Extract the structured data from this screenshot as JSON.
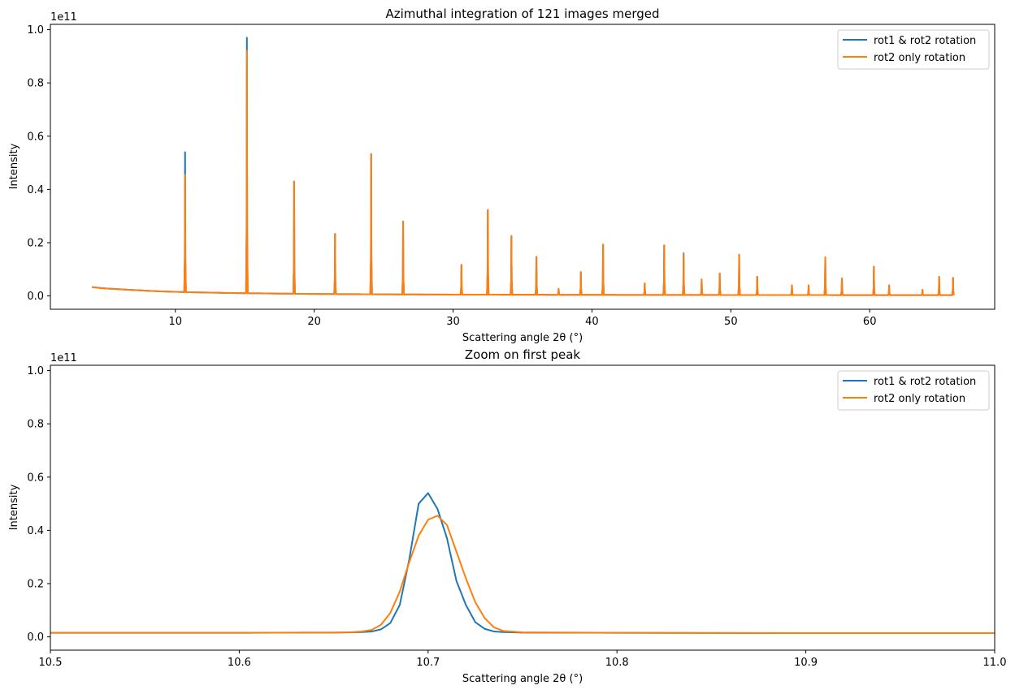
{
  "colors": {
    "series_1": "#1f77b4",
    "series_2": "#ff7f0e",
    "axes": "#000000",
    "background": "#ffffff"
  },
  "chart_data": [
    {
      "type": "line",
      "title": "Azimuthal integration of 121 images merged",
      "xlabel": "Scattering angle 2θ (°)",
      "ylabel": "Intensity",
      "y_offset_label": "1e11",
      "y_scale": 100000000000.0,
      "xlim": [
        1,
        69
      ],
      "ylim": [
        -0.05,
        1.02
      ],
      "xticks": [
        10,
        20,
        30,
        40,
        50,
        60
      ],
      "xtick_labels": [
        "10",
        "20",
        "30",
        "40",
        "50",
        "60"
      ],
      "yticks": [
        0.0,
        0.2,
        0.4,
        0.6,
        0.8,
        1.0
      ],
      "ytick_labels": [
        "0.0",
        "0.2",
        "0.4",
        "0.6",
        "0.8",
        "1.0"
      ],
      "grid": false,
      "legend_position": "top-right",
      "baseline": [
        [
          4.0,
          0.033
        ],
        [
          5.0,
          0.028
        ],
        [
          7.0,
          0.022
        ],
        [
          9.0,
          0.017
        ],
        [
          11.0,
          0.014
        ],
        [
          14.0,
          0.011
        ],
        [
          17.0,
          0.009
        ],
        [
          20.0,
          0.0075
        ],
        [
          25.0,
          0.006
        ],
        [
          30.0,
          0.005
        ],
        [
          40.0,
          0.004
        ],
        [
          50.0,
          0.0035
        ],
        [
          60.0,
          0.003
        ],
        [
          66.2,
          0.003
        ]
      ],
      "peaks_x": [
        10.7,
        15.15,
        18.55,
        21.5,
        24.1,
        26.4,
        30.6,
        32.5,
        34.2,
        36.0,
        37.6,
        39.2,
        40.8,
        43.8,
        45.2,
        46.6,
        47.9,
        49.2,
        50.6,
        51.9,
        54.4,
        55.6,
        56.8,
        58.0,
        60.3,
        61.4,
        63.8,
        65.0,
        66.0
      ],
      "series": [
        {
          "name": "rot1 & rot2 rotation",
          "peak_values": [
            0.54,
            0.97,
            0.43,
            0.233,
            0.533,
            0.28,
            0.117,
            0.323,
            0.225,
            0.147,
            0.027,
            0.09,
            0.193,
            0.047,
            0.19,
            0.16,
            0.062,
            0.085,
            0.155,
            0.072,
            0.04,
            0.04,
            0.145,
            0.066,
            0.11,
            0.04,
            0.023,
            0.072,
            0.068
          ]
        },
        {
          "name": "rot2 only rotation",
          "peak_values": [
            0.455,
            0.92,
            0.43,
            0.233,
            0.533,
            0.28,
            0.117,
            0.323,
            0.225,
            0.147,
            0.027,
            0.09,
            0.193,
            0.047,
            0.19,
            0.157,
            0.062,
            0.085,
            0.155,
            0.072,
            0.04,
            0.04,
            0.145,
            0.066,
            0.11,
            0.04,
            0.023,
            0.072,
            0.068
          ]
        }
      ]
    },
    {
      "type": "line",
      "title": "Zoom on first peak",
      "xlabel": "Scattering angle 2θ (°)",
      "ylabel": "Intensity",
      "y_offset_label": "1e11",
      "y_scale": 100000000000.0,
      "xlim": [
        10.5,
        11.0
      ],
      "ylim": [
        -0.05,
        1.02
      ],
      "xticks": [
        10.5,
        10.6,
        10.7,
        10.8,
        10.9,
        11.0
      ],
      "xtick_labels": [
        "10.5",
        "10.6",
        "10.7",
        "10.8",
        "10.9",
        "11.0"
      ],
      "yticks": [
        0.0,
        0.2,
        0.4,
        0.6,
        0.8,
        1.0
      ],
      "ytick_labels": [
        "0.0",
        "0.2",
        "0.4",
        "0.6",
        "0.8",
        "1.0"
      ],
      "grid": false,
      "legend_position": "top-right",
      "series": [
        {
          "name": "rot1 & rot2 rotation",
          "x": [
            10.5,
            10.6,
            10.65,
            10.665,
            10.67,
            10.675,
            10.68,
            10.685,
            10.69,
            10.695,
            10.7,
            10.705,
            10.71,
            10.715,
            10.72,
            10.725,
            10.73,
            10.735,
            10.74,
            10.75,
            10.8,
            10.9,
            11.0
          ],
          "y": [
            0.015,
            0.015,
            0.016,
            0.018,
            0.02,
            0.028,
            0.052,
            0.12,
            0.29,
            0.5,
            0.54,
            0.48,
            0.37,
            0.21,
            0.12,
            0.055,
            0.03,
            0.02,
            0.018,
            0.016,
            0.015,
            0.014,
            0.014
          ]
        },
        {
          "name": "rot2 only rotation",
          "x": [
            10.5,
            10.6,
            10.65,
            10.66,
            10.665,
            10.67,
            10.675,
            10.68,
            10.685,
            10.69,
            10.695,
            10.7,
            10.705,
            10.71,
            10.715,
            10.72,
            10.725,
            10.73,
            10.735,
            10.74,
            10.75,
            10.8,
            10.9,
            11.0
          ],
          "y": [
            0.015,
            0.015,
            0.016,
            0.018,
            0.02,
            0.026,
            0.045,
            0.09,
            0.17,
            0.28,
            0.38,
            0.44,
            0.455,
            0.42,
            0.32,
            0.22,
            0.13,
            0.07,
            0.035,
            0.022,
            0.017,
            0.015,
            0.014,
            0.014
          ]
        }
      ]
    }
  ]
}
